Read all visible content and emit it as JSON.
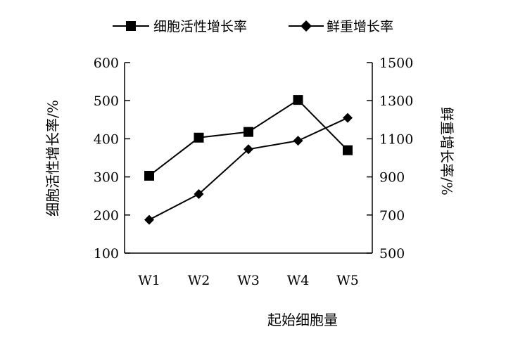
{
  "chart_data": {
    "type": "line",
    "xlabel": "起始细胞量",
    "categories": [
      "W1",
      "W2",
      "W3",
      "W4",
      "W5"
    ],
    "y_left": {
      "label": "细胞活性增长率/%",
      "ylim": [
        100,
        600
      ],
      "ticks": [
        100,
        200,
        300,
        400,
        500,
        600
      ]
    },
    "y_right": {
      "label": "鲜重增长率/%",
      "ylim": [
        500,
        1500
      ],
      "ticks": [
        500,
        700,
        900,
        1100,
        1300,
        1500
      ]
    },
    "series": [
      {
        "name": "细胞活性增长率",
        "axis": "left",
        "marker": "square",
        "values": [
          303,
          403,
          418,
          502,
          370
        ]
      },
      {
        "name": "鲜重增长率",
        "axis": "right",
        "marker": "diamond",
        "values": [
          675,
          810,
          1045,
          1090,
          1210
        ]
      }
    ],
    "legend_position": "top-center",
    "grid": false,
    "colors": {
      "line": "#000000",
      "marker": "#000000"
    }
  }
}
